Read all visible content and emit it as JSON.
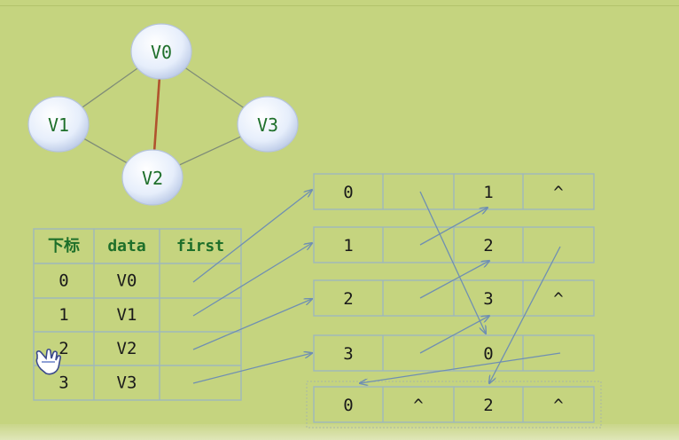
{
  "graph": {
    "nodes": [
      {
        "id": "V0",
        "label": "V0"
      },
      {
        "id": "V1",
        "label": "V1"
      },
      {
        "id": "V2",
        "label": "V2"
      },
      {
        "id": "V3",
        "label": "V3"
      }
    ],
    "edges": [
      {
        "from": "V0",
        "to": "V1",
        "highlight": false
      },
      {
        "from": "V0",
        "to": "V3",
        "highlight": false
      },
      {
        "from": "V0",
        "to": "V2",
        "highlight": true
      },
      {
        "from": "V1",
        "to": "V2",
        "highlight": false
      },
      {
        "from": "V2",
        "to": "V3",
        "highlight": false
      }
    ],
    "colors": {
      "node_text": "#1e6f2a",
      "edge": "#7f8c78",
      "highlight_edge": "#b0532e"
    }
  },
  "vertex_table": {
    "headers": [
      "下标",
      "data",
      "first"
    ],
    "rows": [
      {
        "index": "0",
        "data": "V0"
      },
      {
        "index": "1",
        "data": "V1"
      },
      {
        "index": "2",
        "data": "V2"
      },
      {
        "index": "3",
        "data": "V3"
      }
    ]
  },
  "edge_rows": [
    {
      "cells": [
        "0",
        "",
        "1",
        "^"
      ]
    },
    {
      "cells": [
        "1",
        "",
        "2",
        ""
      ]
    },
    {
      "cells": [
        "2",
        "",
        "3",
        "^"
      ]
    },
    {
      "cells": [
        "3",
        "",
        "0",
        ""
      ]
    },
    {
      "cells": [
        "0",
        "^",
        "2",
        "^"
      ]
    }
  ],
  "colors": {
    "background": "#c5d47f",
    "grid": "#9fb8bc",
    "text": "#1a1a1a",
    "header_text": "#1e6f2a",
    "arrow": "#6f8fb2"
  }
}
